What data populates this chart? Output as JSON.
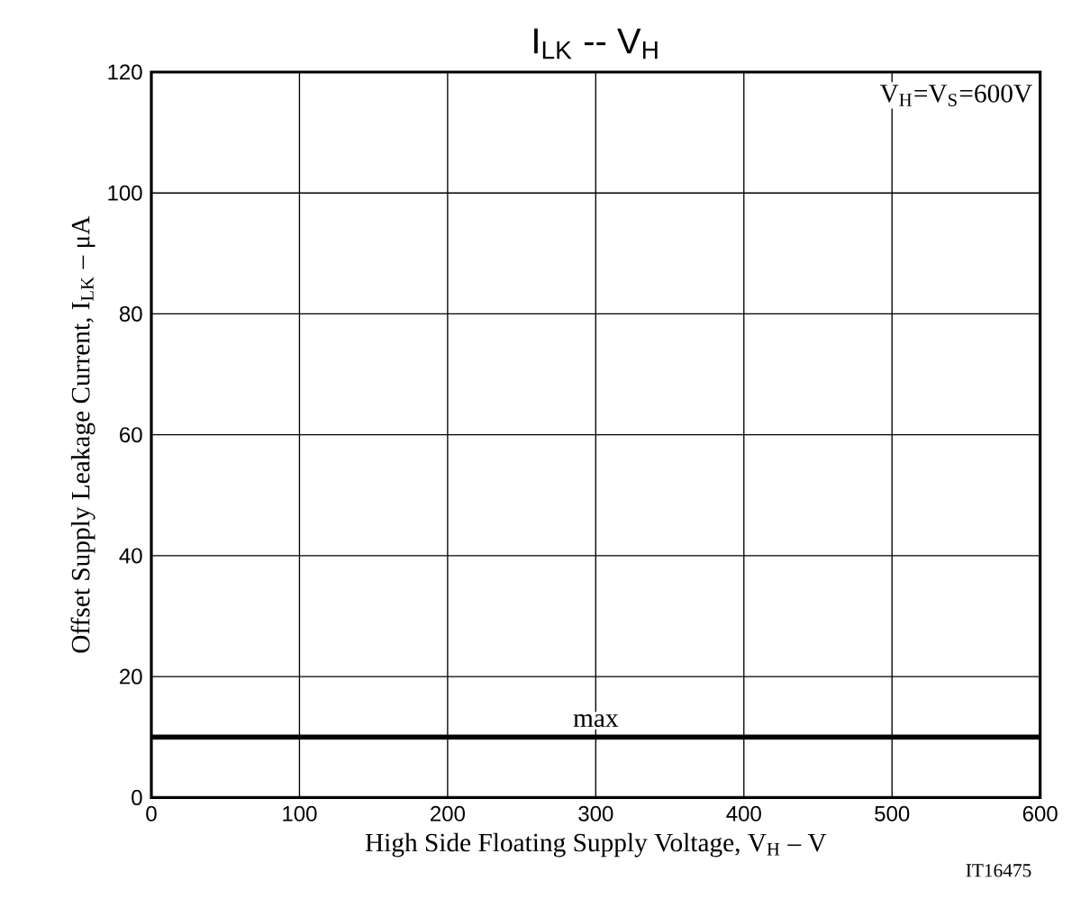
{
  "chart_data": {
    "type": "line",
    "title": "I$_{LK}$ -- V$_{H}$",
    "xlabel": "High Side Floating Supply Voltage, V$_{H}$ – V",
    "ylabel": "Offset Supply Leakage Current, I$_{LK}$ – μA",
    "x": [
      0,
      600
    ],
    "series": [
      {
        "name": "max",
        "color": "#000000",
        "values": [
          10,
          10
        ]
      }
    ],
    "xlim": [
      0,
      600
    ],
    "ylim": [
      0,
      120
    ],
    "xticks": [
      0,
      100,
      200,
      300,
      400,
      500,
      600
    ],
    "yticks": [
      0,
      20,
      40,
      60,
      80,
      100,
      120
    ],
    "grid": true,
    "annotations": [
      "V$_{H}$=V$_{S}$=600V",
      "IT16475"
    ]
  }
}
